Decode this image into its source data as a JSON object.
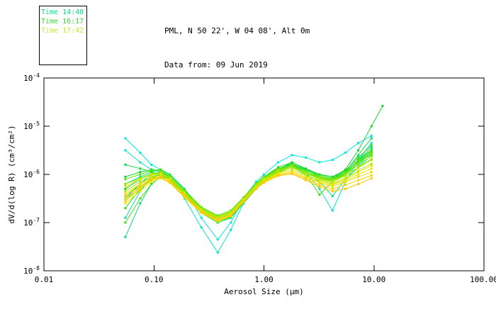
{
  "header": {
    "line1": "PML, N 50 22', W 04 08', Alt 0m",
    "line2": "Data from: 09 Jun 2019"
  },
  "legend": {
    "entries": [
      {
        "label": "Time 14:48",
        "color": "#00E07C"
      },
      {
        "label": "Time 16:17",
        "color": "#32D832"
      },
      {
        "label": "Time 17:42",
        "color": "#C6E632"
      }
    ]
  },
  "chart_data": {
    "type": "line",
    "title": "",
    "xlabel": "Aerosol Size (μm)",
    "ylabel": "dV/d(log R) (cm³/cm²)",
    "x_scale": "log",
    "y_scale": "log",
    "xlim": [
      0.01,
      100.0
    ],
    "ylim": [
      1e-08,
      0.0001
    ],
    "x_tick_values": [
      0.01,
      0.1,
      1.0,
      10.0,
      100.0
    ],
    "x_tick_labels": [
      "0.01",
      "0.10",
      "1.00",
      "10.00",
      "100.00"
    ],
    "y_tick_exponents": [
      -4,
      -5,
      -6,
      -7,
      -8
    ],
    "grid": false,
    "legend_position": "top-left-outside",
    "marker": "square",
    "y_encoding_note": "y_log10 arrays hold log10 of dV/d(log R) in cm3/cm2; actual value = 10^y_log10",
    "x": [
      0.055,
      0.075,
      0.095,
      0.115,
      0.14,
      0.19,
      0.27,
      0.38,
      0.5,
      0.65,
      0.85,
      1.0,
      1.35,
      1.8,
      2.4,
      3.2,
      4.2,
      5.5,
      7.2,
      9.5
    ],
    "series": [
      {
        "name": "series-01",
        "color": "#00E8DC",
        "y_log10": [
          -5.25,
          -5.55,
          -5.8,
          -5.9,
          -6.0,
          -6.3,
          -6.9,
          -7.35,
          -7.0,
          -6.5,
          -6.15,
          -6.0,
          -5.75,
          -5.6,
          -5.65,
          -5.75,
          -5.7,
          -5.55,
          -5.35,
          -5.2
        ]
      },
      {
        "name": "series-02",
        "color": "#00E6C4",
        "y_log10": [
          -5.5,
          -5.75,
          -5.9,
          -5.95,
          -6.1,
          -6.5,
          -7.1,
          -7.62,
          -7.15,
          -6.6,
          -6.3,
          -6.15,
          -5.9,
          -5.8,
          -5.95,
          -6.3,
          -6.75,
          -6.15,
          -5.7,
          -5.35
        ]
      },
      {
        "name": "series-03",
        "color": "#00E4AC",
        "y_log10": [
          -6.9,
          -6.35,
          -6.05,
          -6.0,
          -6.1,
          -6.4,
          -6.8,
          -7.0,
          -6.9,
          -6.6,
          -6.3,
          -6.1,
          -5.95,
          -5.85,
          -5.95,
          -6.1,
          -6.15,
          -6.0,
          -5.8,
          -5.55
        ]
      },
      {
        "name": "series-04",
        "color": "#00E294",
        "y_log10": [
          -6.2,
          -6.05,
          -5.95,
          -5.9,
          -6.0,
          -6.3,
          -6.75,
          -6.95,
          -6.85,
          -6.55,
          -6.25,
          -6.1,
          -5.9,
          -5.8,
          -5.95,
          -6.05,
          -6.1,
          -6.0,
          -5.75,
          -5.5
        ]
      },
      {
        "name": "series-05",
        "color": "#00E07C",
        "y_log10": [
          -7.3,
          -6.6,
          -6.2,
          -6.05,
          -6.1,
          -6.4,
          -6.8,
          -7.0,
          -6.9,
          -6.6,
          -6.3,
          -6.15,
          -5.95,
          -5.85,
          -6.0,
          -6.15,
          -6.45,
          -6.1,
          -5.85,
          -5.6
        ]
      },
      {
        "name": "series-06",
        "color": "#00DE64",
        "y_log10": [
          -6.5,
          -6.2,
          -6.0,
          -5.95,
          -6.05,
          -6.35,
          -6.7,
          -6.9,
          -6.8,
          -6.5,
          -6.2,
          -6.05,
          -5.9,
          -5.8,
          -5.9,
          -6.0,
          -6.05,
          -5.95,
          -5.7,
          -5.45
        ]
      },
      {
        "name": "series-07",
        "color": "#0CDA4C",
        "y_log10": [
          -5.8,
          -5.88,
          -5.95,
          -6.0,
          -6.1,
          -6.4,
          -6.75,
          -6.9,
          -6.8,
          -6.55,
          -6.25,
          -6.1,
          -5.9,
          -5.75,
          -5.9,
          -6.05,
          -6.1,
          -5.95,
          -5.6,
          -5.25
        ]
      },
      {
        "name": "series-08",
        "color": "#18D62E",
        "x": [
          0.055,
          0.075,
          0.095,
          0.115,
          0.14,
          0.19,
          0.27,
          0.38,
          0.5,
          0.65,
          0.85,
          1.0,
          1.35,
          1.8,
          2.4,
          3.2,
          4.2,
          5.5,
          7.2,
          9.5,
          12.0
        ],
        "y_log10": [
          -6.05,
          -5.95,
          -5.9,
          -5.92,
          -6.05,
          -6.35,
          -6.7,
          -6.88,
          -6.78,
          -6.5,
          -6.2,
          -6.05,
          -5.85,
          -5.75,
          -5.88,
          -6.0,
          -6.05,
          -5.9,
          -5.5,
          -5.0,
          -4.58
        ]
      },
      {
        "name": "series-09",
        "color": "#20D41C",
        "y_log10": [
          -6.3,
          -6.1,
          -6.0,
          -5.95,
          -6.08,
          -6.38,
          -6.72,
          -6.92,
          -6.82,
          -6.52,
          -6.22,
          -6.08,
          -5.88,
          -5.78,
          -5.92,
          -6.02,
          -6.08,
          -5.92,
          -5.65,
          -5.4
        ]
      },
      {
        "name": "series-10",
        "color": "#2EDA12",
        "y_log10": [
          -6.7,
          -6.3,
          -6.1,
          -6.0,
          -6.12,
          -6.42,
          -6.78,
          -6.95,
          -6.85,
          -6.55,
          -6.25,
          -6.1,
          -5.92,
          -5.82,
          -5.95,
          -6.08,
          -6.12,
          -5.98,
          -5.7,
          -5.5
        ]
      },
      {
        "name": "series-11",
        "color": "#3EDE0C",
        "y_log10": [
          -7.0,
          -6.5,
          -6.2,
          -6.05,
          -6.15,
          -6.45,
          -6.8,
          -7.0,
          -6.88,
          -6.58,
          -6.28,
          -6.12,
          -5.95,
          -5.85,
          -6.0,
          -6.42,
          -6.15,
          -6.0,
          -5.75,
          -5.55
        ]
      },
      {
        "name": "series-12",
        "color": "#50E208",
        "y_log10": [
          -6.1,
          -6.0,
          -5.92,
          -5.9,
          -6.02,
          -6.32,
          -6.68,
          -6.85,
          -6.75,
          -6.48,
          -6.18,
          -6.05,
          -5.88,
          -5.8,
          -5.92,
          -6.02,
          -6.08,
          -5.95,
          -5.72,
          -5.52
        ]
      },
      {
        "name": "series-13",
        "color": "#66E604",
        "y_log10": [
          -6.45,
          -6.2,
          -6.05,
          -6.0,
          -6.1,
          -6.4,
          -6.73,
          -6.9,
          -6.8,
          -6.5,
          -6.22,
          -6.08,
          -5.9,
          -5.82,
          -5.95,
          -6.05,
          -6.1,
          -5.98,
          -5.76,
          -5.58
        ]
      },
      {
        "name": "series-14",
        "color": "#7EE802",
        "y_log10": [
          -6.2,
          -6.08,
          -5.98,
          -5.95,
          -6.06,
          -6.36,
          -6.7,
          -6.87,
          -6.77,
          -6.5,
          -6.2,
          -6.07,
          -5.9,
          -5.83,
          -5.96,
          -6.06,
          -6.12,
          -6.0,
          -5.8,
          -5.62
        ]
      },
      {
        "name": "series-15",
        "color": "#96E800",
        "y_log10": [
          -6.55,
          -6.25,
          -6.08,
          -6.02,
          -6.12,
          -6.42,
          -6.75,
          -6.92,
          -6.82,
          -6.52,
          -6.24,
          -6.1,
          -5.93,
          -5.86,
          -5.98,
          -6.1,
          -6.15,
          -6.03,
          -5.85,
          -5.68
        ]
      },
      {
        "name": "series-16",
        "color": "#ACE600",
        "y_log10": [
          -6.35,
          -6.15,
          -6.02,
          -5.98,
          -6.08,
          -6.38,
          -6.72,
          -6.88,
          -6.78,
          -6.5,
          -6.22,
          -6.08,
          -5.92,
          -5.85,
          -5.98,
          -6.08,
          -6.14,
          -6.02,
          -5.86,
          -5.7
        ]
      },
      {
        "name": "series-17",
        "color": "#C2E800",
        "y_log10": [
          -6.5,
          -6.28,
          -6.1,
          -6.05,
          -6.15,
          -6.45,
          -6.78,
          -6.95,
          -6.85,
          -6.55,
          -6.28,
          -6.13,
          -5.97,
          -5.9,
          -6.02,
          -6.12,
          -6.18,
          -6.08,
          -5.92,
          -5.78
        ]
      },
      {
        "name": "series-18",
        "color": "#D6E800",
        "y_log10": [
          -6.25,
          -6.1,
          -6.0,
          -5.97,
          -6.08,
          -6.38,
          -6.73,
          -6.9,
          -6.8,
          -6.52,
          -6.25,
          -6.11,
          -5.96,
          -5.9,
          -6.03,
          -6.13,
          -6.2,
          -6.1,
          -5.95,
          -5.82
        ]
      },
      {
        "name": "series-19",
        "color": "#E6E400",
        "y_log10": [
          -6.6,
          -6.35,
          -6.15,
          -6.08,
          -6.18,
          -6.48,
          -6.8,
          -6.97,
          -6.87,
          -6.57,
          -6.3,
          -6.16,
          -6.0,
          -5.94,
          -6.06,
          -6.16,
          -6.22,
          -6.13,
          -6.0,
          -5.88
        ]
      },
      {
        "name": "series-20",
        "color": "#F2DC00",
        "y_log10": [
          -6.4,
          -6.2,
          -6.06,
          -6.02,
          -6.12,
          -6.42,
          -6.76,
          -6.93,
          -6.83,
          -6.55,
          -6.28,
          -6.14,
          -5.99,
          -5.94,
          -6.07,
          -6.18,
          -6.25,
          -6.16,
          -6.05,
          -5.95
        ]
      },
      {
        "name": "series-21",
        "color": "#FCD200",
        "y_log10": [
          -6.55,
          -6.3,
          -6.12,
          -6.06,
          -6.16,
          -6.46,
          -6.79,
          -6.96,
          -6.86,
          -6.58,
          -6.3,
          -6.17,
          -6.02,
          -5.97,
          -6.1,
          -6.22,
          -6.3,
          -6.22,
          -6.12,
          -6.02
        ]
      },
      {
        "name": "series-22",
        "color": "#FFC600",
        "y_log10": [
          -6.45,
          -6.25,
          -6.1,
          -6.05,
          -6.15,
          -6.45,
          -6.78,
          -6.95,
          -6.85,
          -6.57,
          -6.3,
          -6.17,
          -6.03,
          -5.99,
          -6.12,
          -6.26,
          -6.35,
          -6.3,
          -6.2,
          -6.08
        ]
      }
    ]
  }
}
